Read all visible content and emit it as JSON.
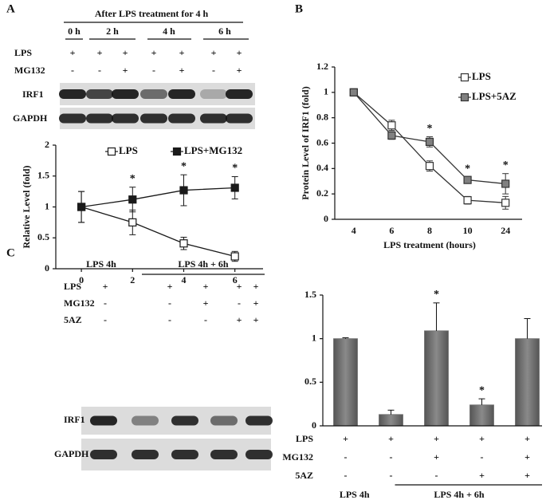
{
  "panel_labels": [
    "A",
    "B",
    "C"
  ],
  "blot_a": {
    "header": "After LPS treatment for 4 h",
    "times": [
      "0 h",
      "2 h",
      "4 h",
      "6 h"
    ],
    "rows": [
      {
        "label": "LPS",
        "signs": [
          "+",
          "+",
          "+",
          "+",
          "+",
          "+",
          "+"
        ]
      },
      {
        "label": "MG132",
        "signs": [
          "-",
          "-",
          "+",
          "-",
          "+",
          "-",
          "+"
        ]
      }
    ],
    "bands": [
      "IRF1",
      "GAPDH"
    ]
  },
  "blot_c": {
    "groups": [
      "LPS 4h",
      "LPS  4h + 6h"
    ],
    "rows": [
      {
        "label": "LPS",
        "signs": [
          "+",
          "+",
          "+",
          "+",
          "+"
        ]
      },
      {
        "label": "MG132",
        "signs": [
          "-",
          "-",
          "+",
          "-",
          "+"
        ]
      },
      {
        "label": "5AZ",
        "signs": [
          "-",
          "-",
          "-",
          "+",
          "+"
        ]
      }
    ],
    "bands": [
      "IRF1",
      "GAPDH"
    ]
  },
  "chart_data": [
    {
      "type": "line",
      "ylabel": "Relative Level (fold)",
      "x": [
        0,
        2,
        4,
        6
      ],
      "xlim": [
        -1,
        7.1
      ],
      "xticks": [
        0,
        2,
        4,
        6
      ],
      "ylim": [
        0,
        2
      ],
      "yticks": [
        0,
        0.5,
        1,
        1.5,
        2
      ],
      "series": [
        {
          "name": "LPS",
          "color": "#1a1a1a",
          "marker_fill": "#ffffff",
          "values": [
            1,
            0.75,
            0.41,
            0.2
          ],
          "errors": [
            0.25,
            0.2,
            0.1,
            0.08
          ]
        },
        {
          "name": "LPS+MG132",
          "color": "#1a1a1a",
          "marker_fill": "#1a1a1a",
          "values": [
            1,
            1.12,
            1.27,
            1.31
          ],
          "errors": [
            0.25,
            0.2,
            0.25,
            0.18
          ]
        }
      ],
      "significance": [
        null,
        "*",
        "*",
        "*"
      ],
      "legend": "top"
    },
    {
      "type": "line",
      "xlabel": "LPS treatment (hours)",
      "ylabel": "Protein Level of IRF1 (fold)",
      "categories": [
        "4",
        "6",
        "8",
        "10",
        "24"
      ],
      "ylim": [
        0,
        1.2
      ],
      "yticks": [
        0,
        0.2,
        0.4,
        0.6,
        0.8,
        1,
        1.2
      ],
      "series": [
        {
          "name": "LPS",
          "color": "#333333",
          "marker_fill": "#ffffff",
          "values": [
            1,
            0.74,
            0.42,
            0.15,
            0.13
          ],
          "errors": [
            0,
            0.04,
            0.04,
            0.03,
            0.05
          ]
        },
        {
          "name": "LPS+5AZ",
          "color": "#333333",
          "marker_fill": "#808080",
          "values": [
            1,
            0.66,
            0.61,
            0.31,
            0.28
          ],
          "errors": [
            0,
            0.03,
            0.04,
            0.02,
            0.08
          ]
        }
      ],
      "significance": [
        null,
        null,
        "*",
        "*",
        "*"
      ],
      "legend": "upper right"
    },
    {
      "type": "bar",
      "color": "#6f6f6f",
      "values": [
        1,
        0.13,
        1.09,
        0.24,
        1.0
      ],
      "errors": [
        0.01,
        0.05,
        0.32,
        0.07,
        0.23
      ],
      "value_labels": [
        null,
        null,
        "*",
        "*",
        null
      ],
      "ylim": [
        0,
        1.5
      ],
      "yticks": [
        0,
        0.5,
        1,
        1.5
      ],
      "conditions": [
        {
          "label": "LPS",
          "signs": [
            "+",
            "+",
            "+",
            "+",
            "+"
          ]
        },
        {
          "label": "MG132",
          "signs": [
            "-",
            "-",
            "+",
            "-",
            "+"
          ]
        },
        {
          "label": "5AZ",
          "signs": [
            "-",
            "-",
            "-",
            "+",
            "+"
          ]
        }
      ],
      "groups": [
        "LPS 4h",
        "LPS 4h + 6h"
      ]
    }
  ]
}
